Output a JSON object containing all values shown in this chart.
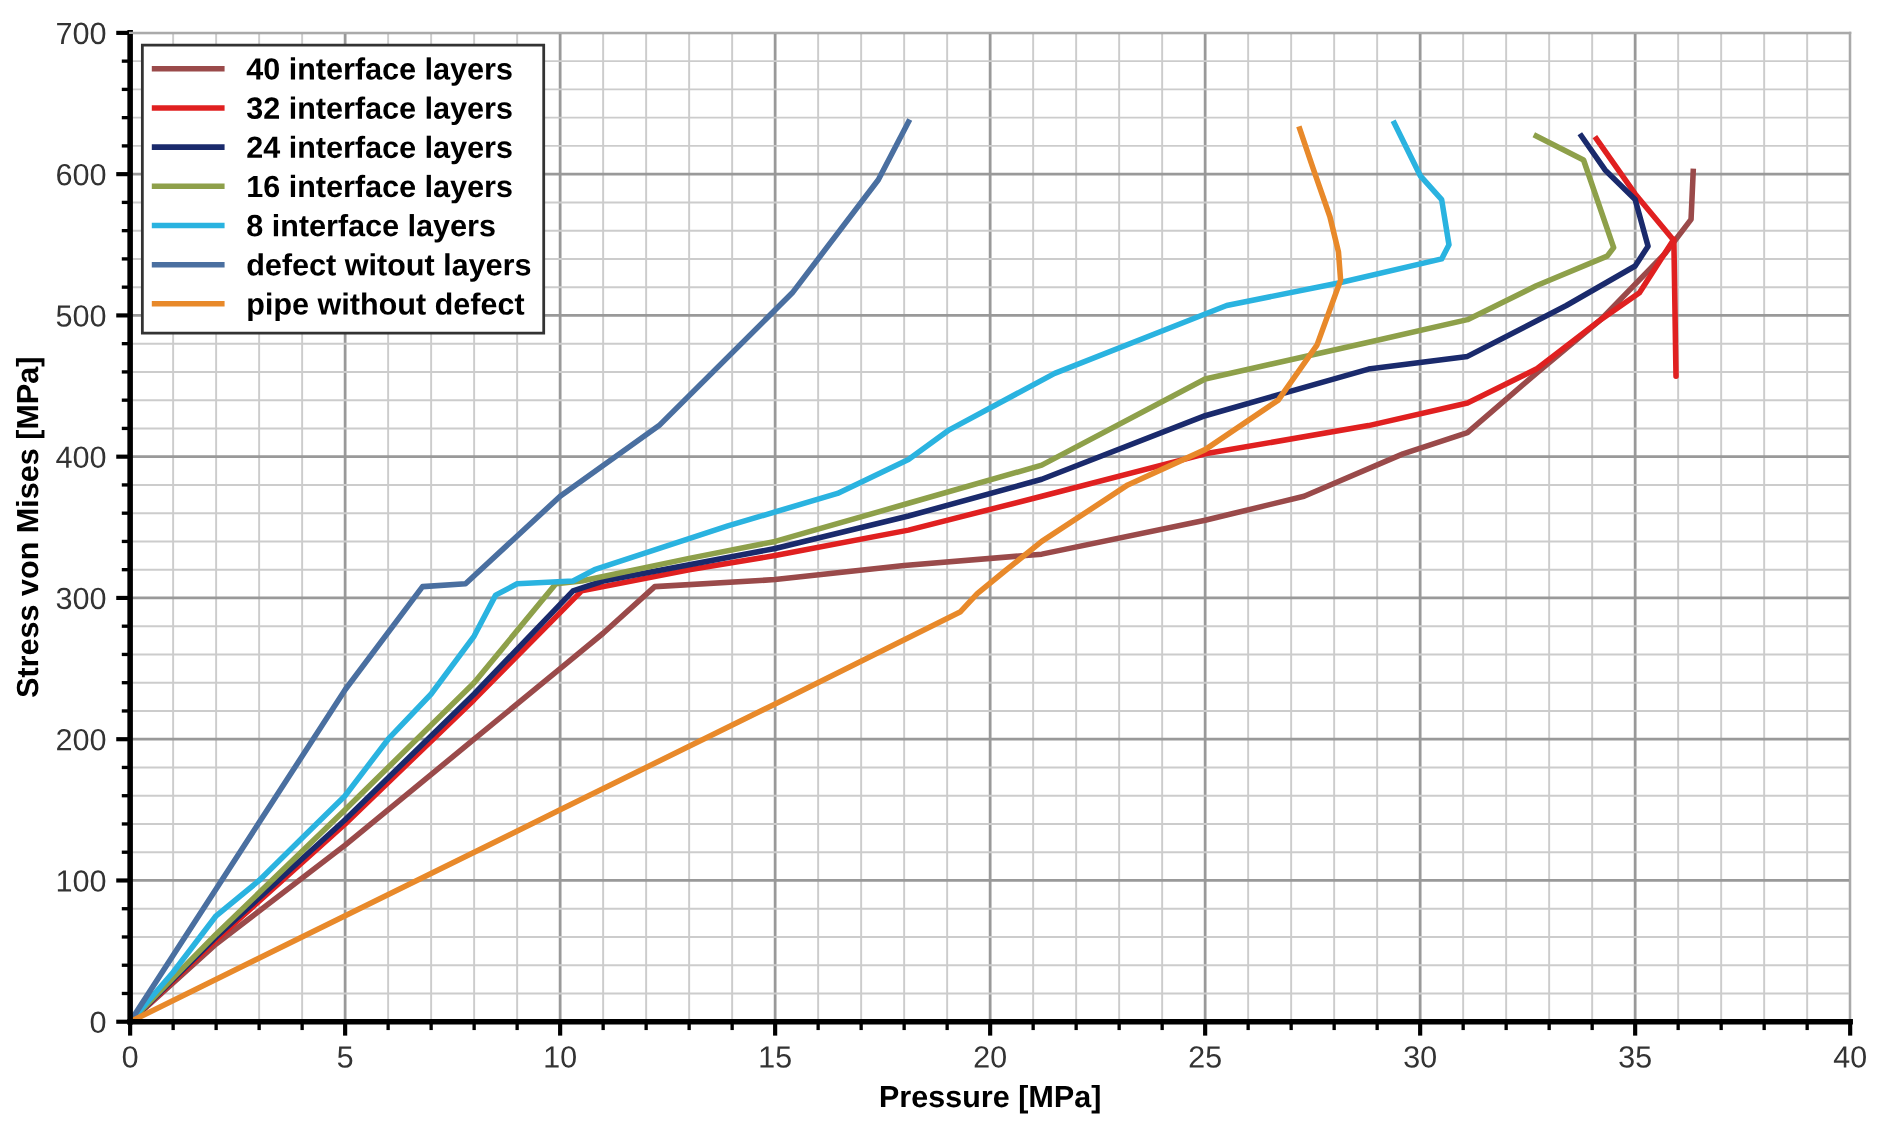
{
  "chart_data": {
    "type": "line",
    "xlabel": "Pressure [MPa]",
    "ylabel": "Stress von Mises [MPa]",
    "xlim": [
      0,
      40
    ],
    "ylim": [
      0,
      700
    ],
    "xticks": [
      0,
      5,
      10,
      15,
      20,
      25,
      30,
      35,
      40
    ],
    "yticks": [
      0,
      100,
      200,
      300,
      400,
      500,
      600,
      700
    ],
    "grid": true,
    "legend": "top left",
    "marker": "none",
    "line_style": "solid",
    "series": [
      {
        "name": "40 interface layers",
        "color": "#9a4a4a",
        "x": [
          0,
          2,
          5,
          8,
          10,
          11,
          12.2,
          15,
          18,
          21.2,
          25,
          27.3,
          29.6,
          31.1,
          32.7,
          34.2,
          35.7,
          36.3,
          36.35
        ],
        "values": [
          0,
          55,
          125,
          200,
          250,
          275,
          308,
          313,
          323,
          331,
          355,
          372,
          402,
          417,
          459,
          497,
          544,
          568,
          602
        ]
      },
      {
        "name": "32 interface layers",
        "color": "#e02020",
        "x": [
          0,
          2,
          5,
          8,
          10.5,
          13,
          15,
          18.1,
          21.2,
          25,
          28.8,
          31.1,
          32.7,
          34.2,
          35.1,
          35.9,
          35.95,
          35.9,
          35.0,
          34.1
        ],
        "values": [
          0,
          58,
          140,
          228,
          305,
          320,
          330,
          348,
          372,
          402,
          422,
          438,
          462,
          497,
          516,
          554,
          457,
          553,
          586,
          625
        ]
      },
      {
        "name": "24 interface layers",
        "color": "#1a2a6c",
        "x": [
          0,
          2,
          5,
          8,
          10.3,
          11,
          15,
          18.1,
          21.2,
          25,
          28.8,
          31.1,
          33.4,
          35.0,
          35.3,
          35.0,
          34.3,
          33.75
        ],
        "values": [
          0,
          60,
          143,
          232,
          305,
          312,
          335,
          358,
          384,
          429,
          462,
          471,
          507,
          535,
          549,
          582,
          603,
          627
        ]
      },
      {
        "name": "16 interface layers",
        "color": "#8ea04a",
        "x": [
          0,
          2,
          5,
          8,
          9.9,
          10.5,
          13,
          15,
          18.1,
          21.2,
          25,
          28.8,
          31.1,
          32.7,
          34.35,
          34.5,
          33.8,
          32.7
        ],
        "values": [
          0,
          62,
          150,
          240,
          310,
          312,
          328,
          340,
          367,
          394,
          455,
          481,
          497,
          521,
          542,
          548,
          610,
          627
        ]
      },
      {
        "name": "8 interface layers",
        "color": "#2ab3e0",
        "x": [
          0,
          1,
          2,
          3,
          4,
          5,
          6,
          7,
          8,
          8.5,
          9,
          10.3,
          10.8,
          13.9,
          16.45,
          18.1,
          19.05,
          21.5,
          25.5,
          28.1,
          30.5,
          30.67,
          30.5,
          30.0,
          29.4
        ],
        "values": [
          0,
          35,
          75,
          100,
          130,
          160,
          200,
          232,
          273,
          302,
          310,
          312,
          320,
          351,
          374,
          398,
          419,
          459,
          507,
          523,
          540,
          550,
          582,
          599,
          636
        ]
      },
      {
        "name": "defect witout layers",
        "color": "#4a6fa0",
        "x": [
          0,
          5,
          6.8,
          7.8,
          10,
          12.3,
          15.4,
          17.4,
          18.1
        ],
        "values": [
          0,
          235,
          308,
          310,
          372,
          422,
          516,
          596,
          637
        ]
      },
      {
        "name": "pipe without defect",
        "color": "#e8892a",
        "x": [
          0,
          10,
          15,
          19.3,
          19.7,
          20.3,
          21.2,
          23.2,
          25,
          26.7,
          27.6,
          28.15,
          28.1,
          27.9,
          27.5,
          27.2
        ],
        "values": [
          0,
          150,
          225,
          290,
          303,
          318,
          340,
          380,
          405,
          440,
          479,
          525,
          545,
          570,
          605,
          632
        ]
      }
    ]
  }
}
